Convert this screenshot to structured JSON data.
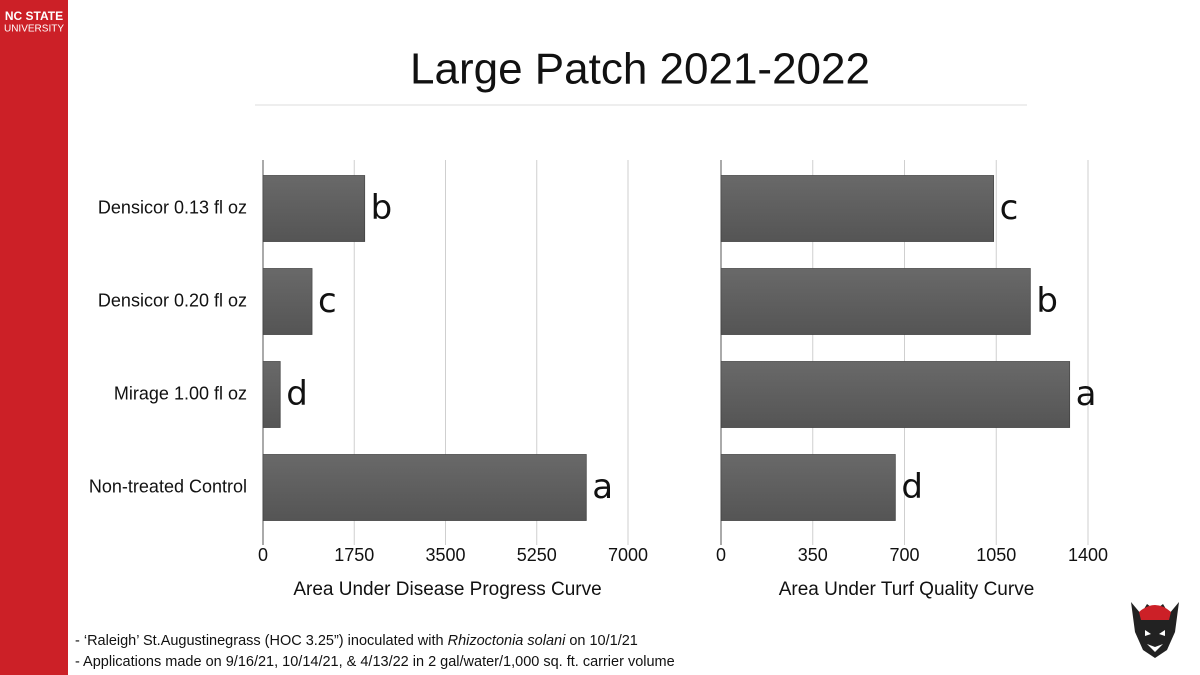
{
  "header": {
    "logo_line1": "NC STATE",
    "logo_line2": "UNIVERSITY",
    "title": "Large Patch 2021-2022"
  },
  "notes": [
    [
      "- ‘Raleigh’ St.Augustinegrass (HOC 3.25”) inoculated with ",
      "Rhizoctonia solani",
      " on 10/1/21"
    ],
    [
      "- Applications made on 9/16/21, 10/14/21, & 4/13/22 in 2 gal/water/1,000 sq. ft. carrier volume"
    ]
  ],
  "chart_data": [
    {
      "type": "bar",
      "orientation": "horizontal",
      "x_label": "Area Under Disease Progress Curve",
      "categories": [
        "Densicor 0.13 fl oz",
        "Densicor 0.20 fl oz",
        "Mirage 1.00 fl oz",
        "Non-treated Control"
      ],
      "values": [
        1950,
        940,
        330,
        6200
      ],
      "annotations": [
        "b",
        "c",
        "d",
        "a"
      ],
      "color": "#5c5c5c",
      "xlim": [
        0,
        7000
      ],
      "xticks": [
        0,
        1750,
        3500,
        5250,
        7000
      ],
      "grid": true
    },
    {
      "type": "bar",
      "orientation": "horizontal",
      "x_label": "Area Under Turf Quality Curve",
      "values": [
        1040,
        1180,
        1330,
        665
      ],
      "annotations": [
        "c",
        "b",
        "a",
        "d"
      ],
      "color": "#5c5c5c",
      "xlim": [
        0,
        1400
      ],
      "xticks": [
        0,
        350,
        700,
        1050,
        1400
      ],
      "grid": true
    }
  ]
}
